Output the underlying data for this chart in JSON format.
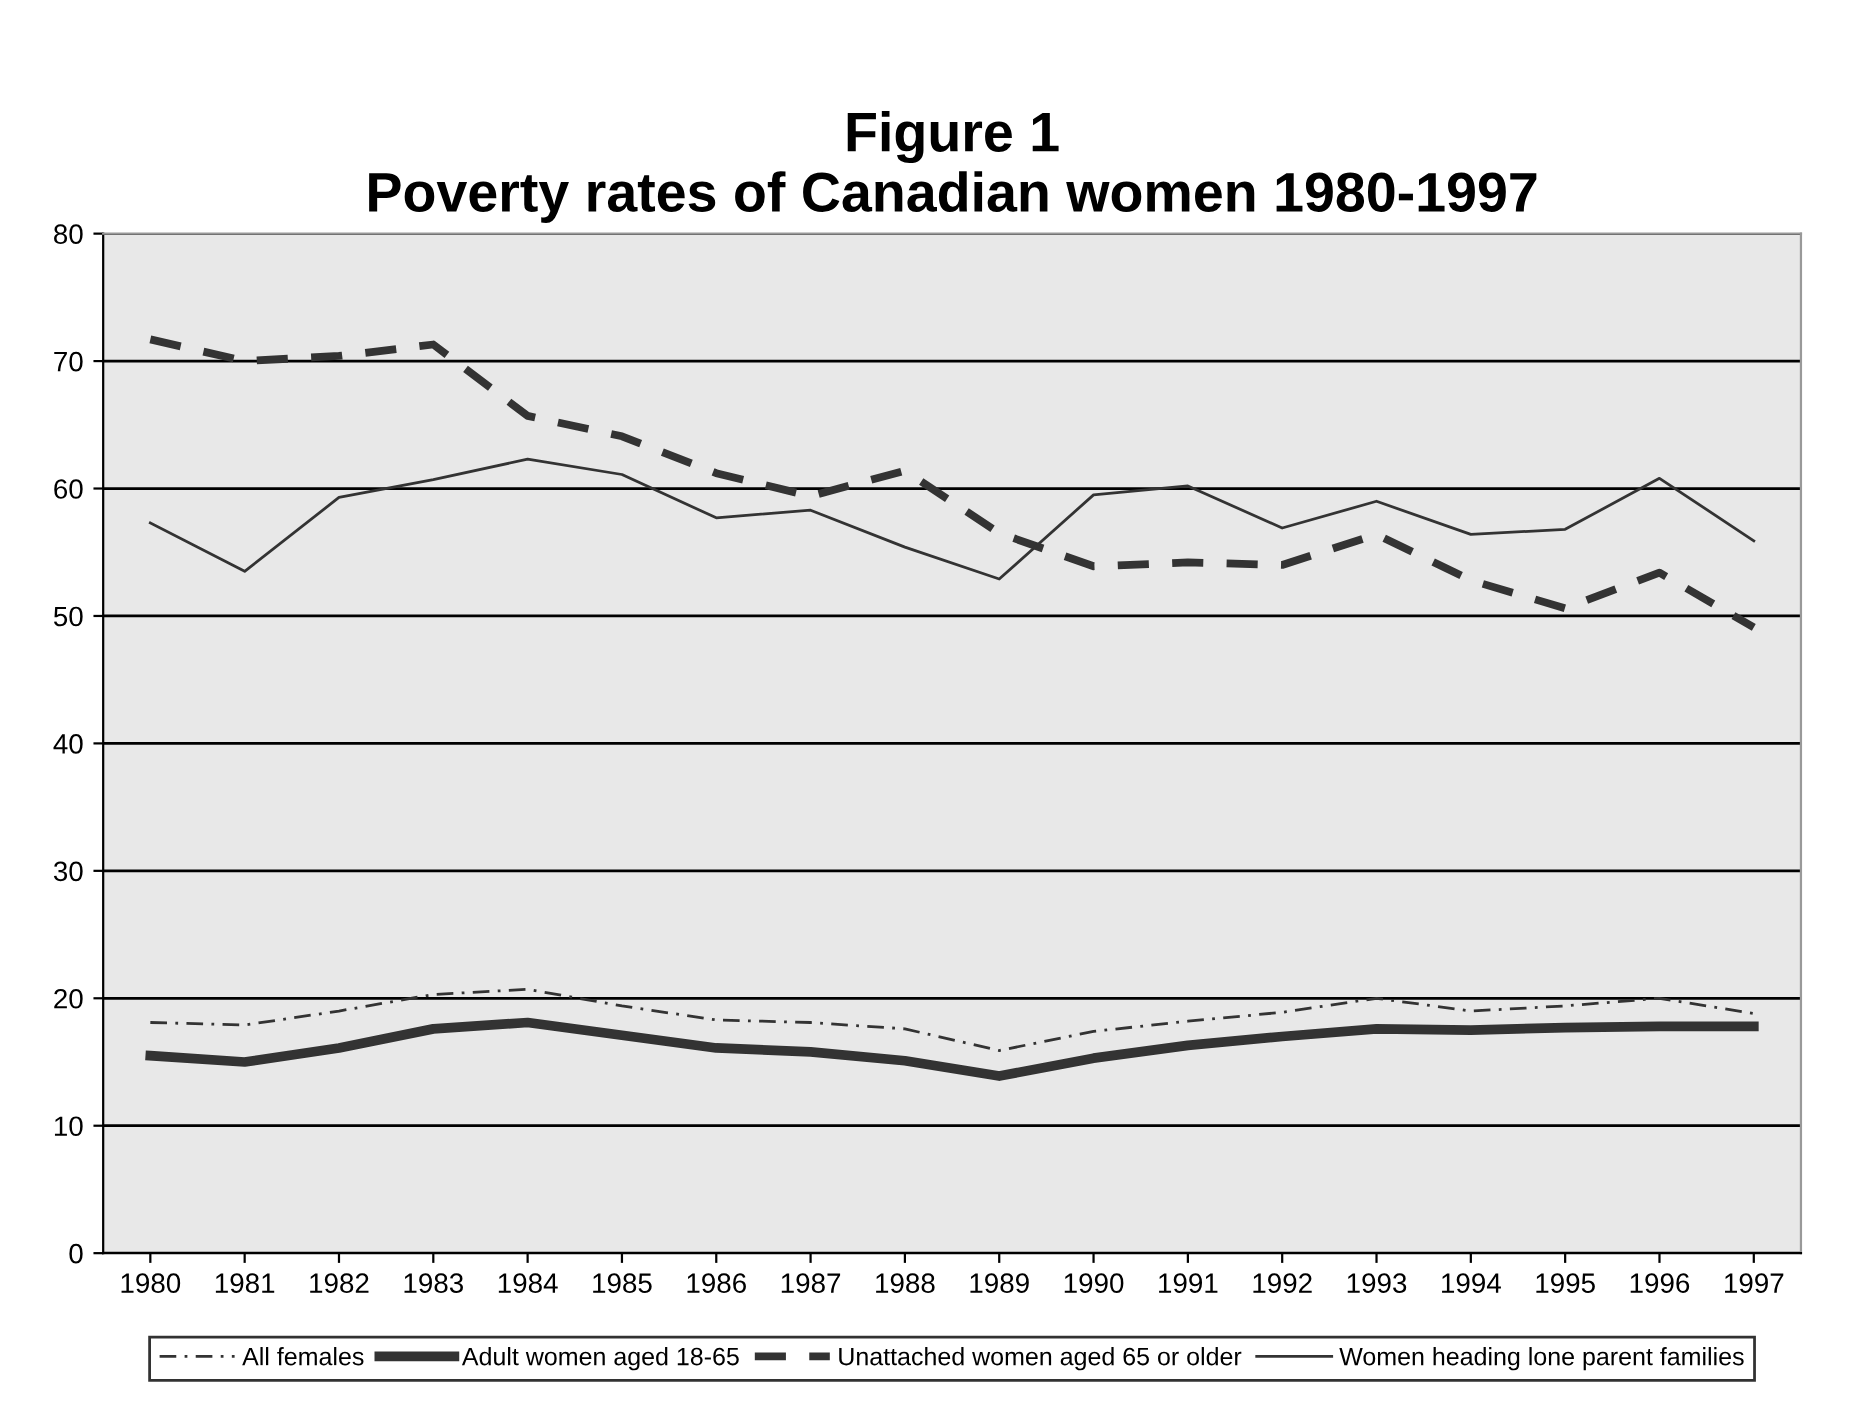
{
  "chart_data": {
    "type": "line",
    "title": "Figure 1\nPoverty rates of Canadian women 1980-1997",
    "categories": [
      "1980",
      "1981",
      "1982",
      "1983",
      "1984",
      "1985",
      "1986",
      "1987",
      "1988",
      "1989",
      "1990",
      "1991",
      "1992",
      "1993",
      "1994",
      "1995",
      "1996",
      "1997"
    ],
    "series": [
      {
        "name": "All females",
        "color": "#333333",
        "line_style": "dashdot",
        "values": [
          18.1,
          17.9,
          19.0,
          20.3,
          20.7,
          19.4,
          18.3,
          18.1,
          17.6,
          15.9,
          17.4,
          18.2,
          18.9,
          20.0,
          19.0,
          19.4,
          20.0,
          18.8
        ]
      },
      {
        "name": "Adult women aged 18-65",
        "color": "#333333",
        "line_style": "solid",
        "values": [
          15.5,
          15.0,
          16.1,
          17.6,
          18.1,
          17.1,
          16.1,
          15.8,
          15.1,
          13.9,
          15.3,
          16.3,
          17.0,
          17.6,
          17.5,
          17.7,
          17.8,
          17.8
        ]
      },
      {
        "name": "Unattached women aged 65 or older",
        "color": "#333333",
        "line_style": "dashed",
        "values": [
          71.7,
          70.0,
          70.4,
          71.3,
          65.7,
          64.1,
          61.2,
          59.4,
          61.4,
          56.5,
          53.9,
          54.2,
          54.0,
          56.4,
          52.8,
          50.6,
          53.4,
          49.1
        ]
      },
      {
        "name": "Women heading lone parent families",
        "color": "#333333",
        "line_style": "solid",
        "values": [
          57.3,
          53.5,
          59.3,
          60.7,
          62.3,
          61.1,
          57.7,
          58.3,
          55.4,
          52.9,
          59.5,
          60.2,
          56.9,
          59.0,
          56.4,
          56.8,
          60.8,
          55.9
        ]
      }
    ],
    "ylim": [
      0,
      80
    ],
    "yticks": [
      0,
      10,
      20,
      30,
      40,
      50,
      60,
      70,
      80
    ],
    "grid": "y",
    "legend": "bottom",
    "marker": "none"
  }
}
